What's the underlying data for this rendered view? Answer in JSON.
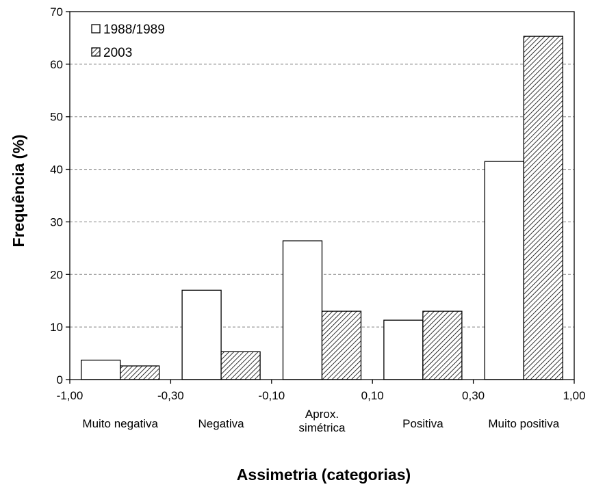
{
  "chart_data": {
    "type": "bar",
    "title": "",
    "xlabel": "Assimetria (categorias)",
    "ylabel": "Frequência (%)",
    "ylim": [
      0,
      70
    ],
    "y_ticks": [
      "0",
      "10",
      "20",
      "30",
      "40",
      "50",
      "60",
      "70"
    ],
    "x_ticks": [
      "-1,00",
      "-0,30",
      "-0,10",
      "0,10",
      "0,30",
      "1,00"
    ],
    "categories": [
      [
        "Muito negativa"
      ],
      [
        "Negativa"
      ],
      [
        "Aprox.",
        "simétrica"
      ],
      [
        "Positiva"
      ],
      [
        "Muito positiva"
      ]
    ],
    "series": [
      {
        "name": "1988/1989",
        "values": [
          3.7,
          17.0,
          26.4,
          11.3,
          41.5
        ],
        "fill": "#ffffff",
        "pattern": "none"
      },
      {
        "name": "2003",
        "values": [
          2.6,
          5.3,
          13.0,
          13.0,
          65.3
        ],
        "fill": "#ffffff",
        "pattern": "diagonal-hatch"
      }
    ],
    "grid": "horizontal-dashed",
    "legend_position": "top-left",
    "colors": {
      "stroke": "#000000",
      "grid": "#808080",
      "background": "#ffffff"
    }
  }
}
